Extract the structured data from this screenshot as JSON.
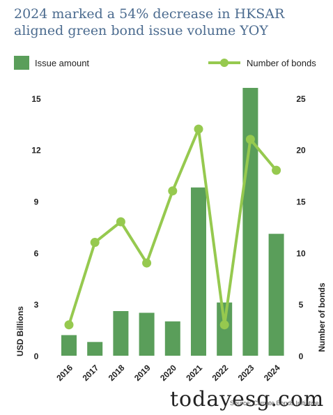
{
  "chart_data": {
    "type": "bar+line",
    "title": "2024 marked a 54% decrease in HKSAR aligned green bond issue volume YOY",
    "categories": [
      "2016",
      "2017",
      "2018",
      "2019",
      "2020",
      "2021",
      "2022",
      "2023",
      "2024"
    ],
    "series": [
      {
        "name": "Issue amount",
        "type": "bar",
        "axis": "left",
        "color": "#5a9e5a",
        "values": [
          1.2,
          0.8,
          2.6,
          2.5,
          2.0,
          9.8,
          3.1,
          15.6,
          7.1
        ]
      },
      {
        "name": "Number of bonds",
        "type": "line",
        "axis": "right",
        "color": "#96c94f",
        "values": [
          3,
          11,
          13,
          9,
          16,
          22,
          3,
          21,
          18
        ]
      }
    ],
    "ylabel": "USD Billions",
    "ylabel_right": "Number of bonds",
    "ylim": [
      0,
      15.6
    ],
    "ylim_right": [
      0,
      26
    ],
    "yticks": [
      "0",
      "3",
      "6",
      "9",
      "12",
      "15"
    ],
    "yticks_right": [
      "0",
      "5",
      "10",
      "15",
      "20",
      "25"
    ],
    "legend_position": "top"
  },
  "source": "Source: Climate Bonds Initiative",
  "watermark": "todayesg.com"
}
